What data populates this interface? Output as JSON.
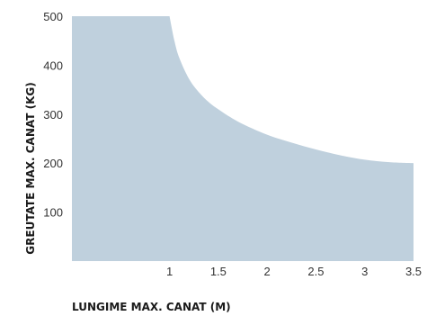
{
  "chart_data": {
    "type": "area",
    "title": "",
    "xlabel": "LUNGIME MAX. CANAT (M)",
    "ylabel": "GREUTATE MAX. CANAT (KG)",
    "xlim": [
      0,
      3.5
    ],
    "ylim": [
      0,
      500
    ],
    "x_ticks": [
      "1",
      "1.5",
      "2",
      "2.5",
      "3",
      "3.5"
    ],
    "y_ticks": [
      "100",
      "200",
      "300",
      "400",
      "500"
    ],
    "grid": false,
    "legend": "none",
    "fill_color": "#bfd0dd",
    "series": [
      {
        "x": [
          0,
          1,
          1.05,
          1.1,
          1.2,
          1.3,
          1.4,
          1.5,
          1.7,
          2,
          2.25,
          2.5,
          2.75,
          3,
          3.25,
          3.5
        ],
        "values": [
          500,
          500,
          450,
          415,
          372,
          345,
          325,
          310,
          285,
          258,
          242,
          228,
          216,
          207,
          202,
          200
        ]
      }
    ]
  }
}
